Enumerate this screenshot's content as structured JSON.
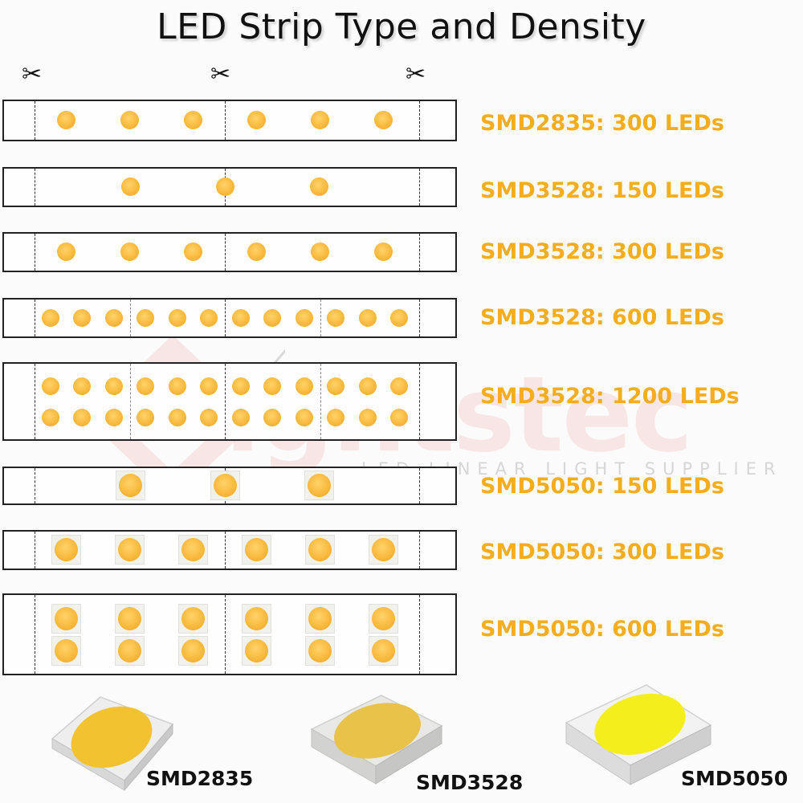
{
  "title": "LED Strip Type and Density",
  "scissors_glyph": "✂",
  "strips": [
    {
      "label": "SMD2835: 300 LEDs",
      "package": "SMD2835",
      "leds_per_cut_section": 6,
      "rows": 1,
      "led_size": "small"
    },
    {
      "label": "SMD3528: 150 LEDs",
      "package": "SMD3528",
      "leds_per_cut_section": 3,
      "rows": 1,
      "led_size": "small"
    },
    {
      "label": "SMD3528: 300 LEDs",
      "package": "SMD3528",
      "leds_per_cut_section": 6,
      "rows": 1,
      "led_size": "small"
    },
    {
      "label": "SMD3528: 600 LEDs",
      "package": "SMD3528",
      "leds_per_cut_section": 12,
      "rows": 1,
      "led_size": "small"
    },
    {
      "label": "SMD3528: 1200 LEDs",
      "package": "SMD3528",
      "leds_per_cut_section": 24,
      "rows": 2,
      "led_size": "small"
    },
    {
      "label": "SMD5050: 150 LEDs",
      "package": "SMD5050",
      "leds_per_cut_section": 3,
      "rows": 1,
      "led_size": "large"
    },
    {
      "label": "SMD5050: 300 LEDs",
      "package": "SMD5050",
      "leds_per_cut_section": 6,
      "rows": 1,
      "led_size": "large"
    },
    {
      "label": "SMD5050: 600 LEDs",
      "package": "SMD5050",
      "leds_per_cut_section": 12,
      "rows": 2,
      "led_size": "large"
    }
  ],
  "chips": [
    {
      "label": "SMD2835",
      "icon": "smd2835-chip-icon",
      "emitter_color": "#f2c230"
    },
    {
      "label": "SMD3528",
      "icon": "smd3528-chip-icon",
      "emitter_color": "#e9c24a"
    },
    {
      "label": "SMD5050",
      "icon": "smd5050-chip-icon",
      "emitter_color": "#f4ef1c"
    }
  ],
  "watermark": {
    "name": "ightstec",
    "tagline": "LED LINEAR LIGHT SUPPLIER"
  },
  "colors": {
    "label_orange": "#f5ad1e",
    "led_yellow": "#f8b73a",
    "watermark_red": "#eb5a5a"
  }
}
